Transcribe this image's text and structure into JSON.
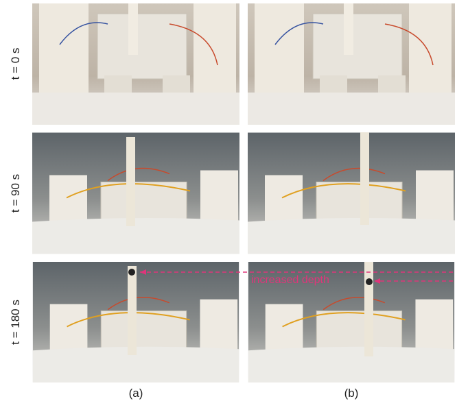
{
  "rows": [
    {
      "label": "t = 0 s"
    },
    {
      "label": "t = 90 s"
    },
    {
      "label": "t = 180 s"
    }
  ],
  "columns": [
    {
      "label": "(a)"
    },
    {
      "label": "(b)"
    }
  ],
  "annotation": {
    "text": "increased depth"
  }
}
